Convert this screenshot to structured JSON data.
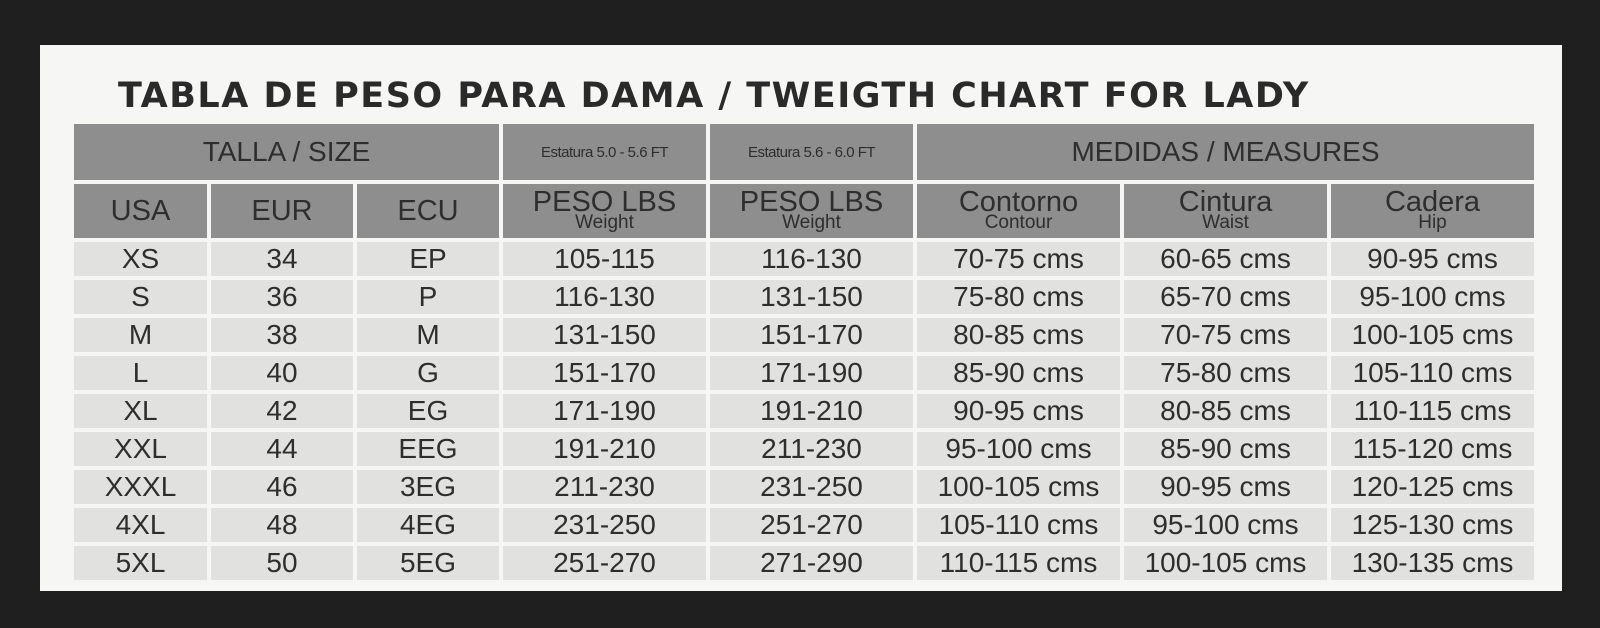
{
  "title": "TABLA DE PESO PARA DAMA / TWEIGTH CHART FOR LADY",
  "group_headers": {
    "size": "TALLA / SIZE",
    "height1": "Estatura 5.0 - 5.6 FT",
    "height2": "Estatura 5.6 - 6.0 FT",
    "measures": "MEDIDAS / MEASURES"
  },
  "columns": [
    {
      "label": "USA",
      "sub": ""
    },
    {
      "label": "EUR",
      "sub": ""
    },
    {
      "label": "ECU",
      "sub": ""
    },
    {
      "label": "PESO LBS",
      "sub": "Weight"
    },
    {
      "label": "PESO LBS",
      "sub": "Weight"
    },
    {
      "label": "Contorno",
      "sub": "Contour"
    },
    {
      "label": "Cintura",
      "sub": "Waist"
    },
    {
      "label": "Cadera",
      "sub": "Hip"
    }
  ],
  "rows": [
    [
      "XS",
      "34",
      "EP",
      "105-115",
      "116-130",
      "70-75 cms",
      "60-65 cms",
      "90-95 cms"
    ],
    [
      "S",
      "36",
      "P",
      "116-130",
      "131-150",
      "75-80 cms",
      "65-70 cms",
      "95-100 cms"
    ],
    [
      "M",
      "38",
      "M",
      "131-150",
      "151-170",
      "80-85 cms",
      "70-75 cms",
      "100-105 cms"
    ],
    [
      "L",
      "40",
      "G",
      "151-170",
      "171-190",
      "85-90 cms",
      "75-80 cms",
      "105-110 cms"
    ],
    [
      "XL",
      "42",
      "EG",
      "171-190",
      "191-210",
      "90-95 cms",
      "80-85 cms",
      "110-115 cms"
    ],
    [
      "XXL",
      "44",
      "EEG",
      "191-210",
      "211-230",
      "95-100 cms",
      "85-90 cms",
      "115-120 cms"
    ],
    [
      "XXXL",
      "46",
      "3EG",
      "211-230",
      "231-250",
      "100-105 cms",
      "90-95 cms",
      "120-125 cms"
    ],
    [
      "4XL",
      "48",
      "4EG",
      "231-250",
      "251-270",
      "105-110 cms",
      "95-100 cms",
      "125-130 cms"
    ],
    [
      "5XL",
      "50",
      "5EG",
      "251-270",
      "271-290",
      "110-115 cms",
      "100-105 cms",
      "130-135 cms"
    ]
  ]
}
